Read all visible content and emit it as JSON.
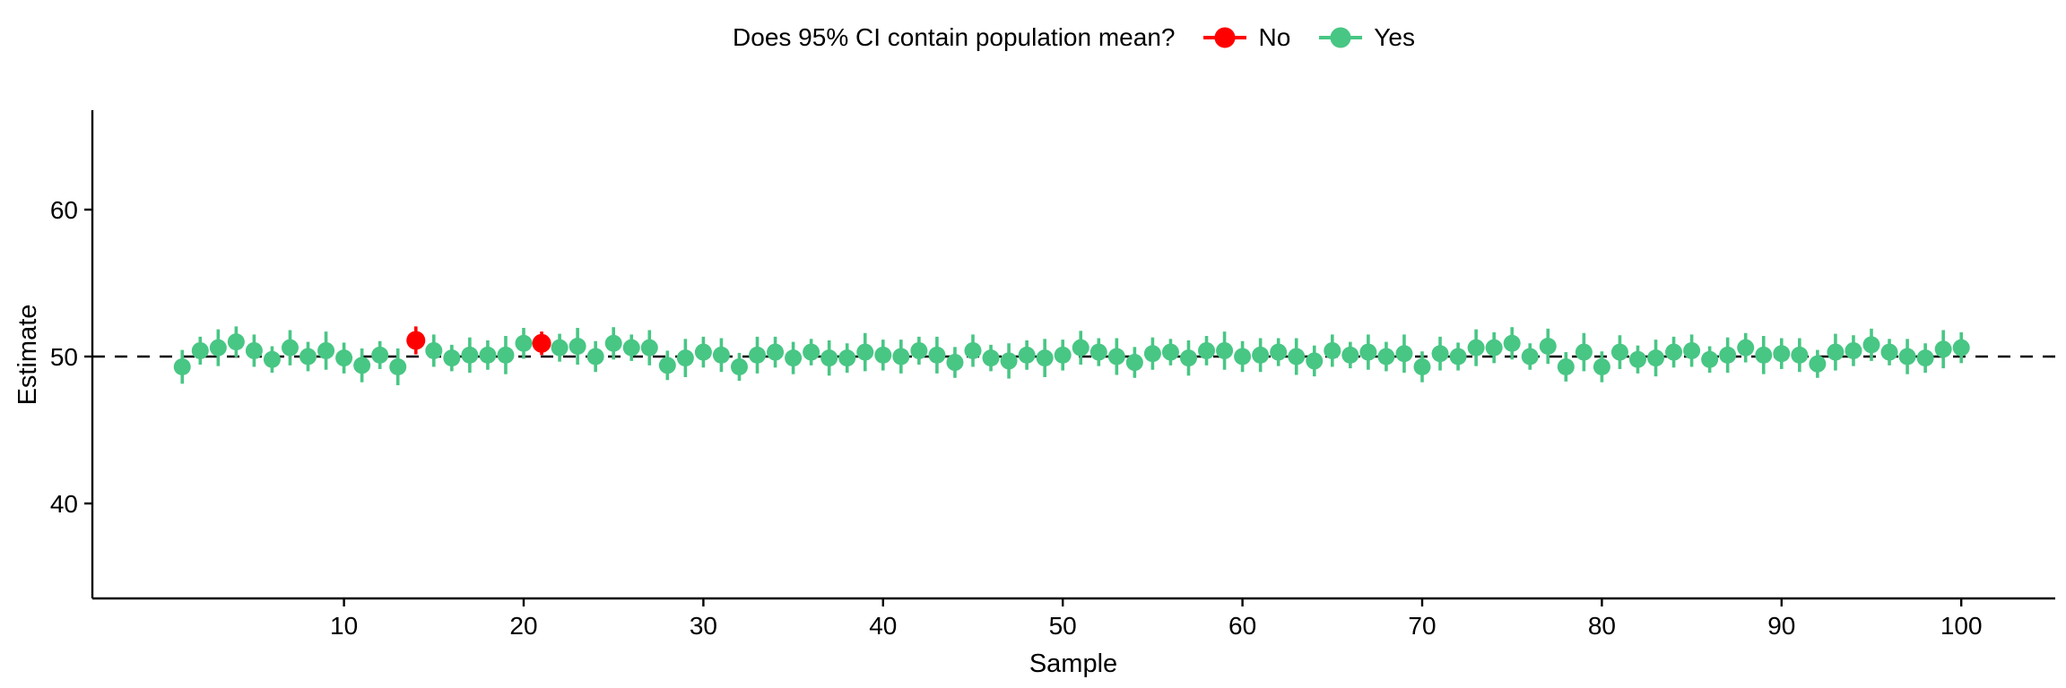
{
  "legend": {
    "title": "Does 95% CI contain population mean?",
    "items": [
      {
        "label": "No",
        "color": "#FF0000"
      },
      {
        "label": "Yes",
        "color": "#48C684"
      }
    ]
  },
  "axes": {
    "x": {
      "label": "Sample",
      "ticks": [
        10,
        20,
        30,
        40,
        50,
        60,
        70,
        80,
        90,
        100
      ]
    },
    "y": {
      "label": "Estimate",
      "ticks": [
        40,
        50,
        60
      ]
    }
  },
  "chart_data": {
    "type": "pointrange",
    "legend_title": "Does 95% CI contain population mean?",
    "xlabel": "Sample",
    "ylabel": "Estimate",
    "x_ticks": [
      10,
      20,
      30,
      40,
      50,
      60,
      70,
      80,
      90,
      100
    ],
    "y_ticks": [
      40,
      50,
      60
    ],
    "xlim": [
      -3,
      105
    ],
    "ylim": [
      33.5,
      66.8
    ],
    "reference_line_y": 50,
    "grid": "off",
    "legend_position": "top",
    "columns": [
      "sample",
      "estimate",
      "ci_lower",
      "ci_upper",
      "contains_mean"
    ],
    "rows": [
      [
        1,
        49.3,
        48.15,
        50.45,
        "Yes"
      ],
      [
        2,
        50.4,
        49.45,
        51.35,
        "Yes"
      ],
      [
        3,
        50.6,
        49.35,
        51.85,
        "Yes"
      ],
      [
        4,
        51.0,
        49.95,
        52.05,
        "Yes"
      ],
      [
        5,
        50.4,
        49.3,
        51.5,
        "Yes"
      ],
      [
        6,
        49.8,
        48.9,
        50.7,
        "Yes"
      ],
      [
        7,
        50.6,
        49.4,
        51.8,
        "Yes"
      ],
      [
        8,
        50.0,
        49.0,
        51.0,
        "Yes"
      ],
      [
        9,
        50.4,
        49.1,
        51.7,
        "Yes"
      ],
      [
        10,
        49.9,
        48.85,
        50.95,
        "Yes"
      ],
      [
        11,
        49.4,
        48.25,
        50.55,
        "Yes"
      ],
      [
        12,
        50.1,
        49.15,
        51.05,
        "Yes"
      ],
      [
        13,
        49.3,
        48.05,
        50.55,
        "Yes"
      ],
      [
        14,
        51.1,
        50.15,
        52.05,
        "No"
      ],
      [
        15,
        50.4,
        49.3,
        51.5,
        "Yes"
      ],
      [
        16,
        49.9,
        49.0,
        50.8,
        "Yes"
      ],
      [
        17,
        50.1,
        48.9,
        51.3,
        "Yes"
      ],
      [
        18,
        50.1,
        49.1,
        51.1,
        "Yes"
      ],
      [
        19,
        50.1,
        48.8,
        51.4,
        "Yes"
      ],
      [
        20,
        50.9,
        49.85,
        51.95,
        "Yes"
      ],
      [
        21,
        50.9,
        50.1,
        51.7,
        "No"
      ],
      [
        22,
        50.6,
        49.65,
        51.55,
        "Yes"
      ],
      [
        23,
        50.7,
        49.45,
        51.95,
        "Yes"
      ],
      [
        24,
        50.0,
        48.95,
        51.05,
        "Yes"
      ],
      [
        25,
        50.9,
        49.8,
        52.0,
        "Yes"
      ],
      [
        26,
        50.6,
        49.7,
        51.5,
        "Yes"
      ],
      [
        27,
        50.6,
        49.4,
        51.8,
        "Yes"
      ],
      [
        28,
        49.4,
        48.4,
        50.4,
        "Yes"
      ],
      [
        29,
        49.9,
        48.6,
        51.2,
        "Yes"
      ],
      [
        30,
        50.3,
        49.25,
        51.35,
        "Yes"
      ],
      [
        31,
        50.1,
        48.95,
        51.25,
        "Yes"
      ],
      [
        32,
        49.3,
        48.35,
        50.25,
        "Yes"
      ],
      [
        33,
        50.1,
        48.85,
        51.35,
        "Yes"
      ],
      [
        34,
        50.3,
        49.25,
        51.35,
        "Yes"
      ],
      [
        35,
        49.9,
        48.8,
        51.0,
        "Yes"
      ],
      [
        36,
        50.3,
        49.4,
        51.2,
        "Yes"
      ],
      [
        37,
        49.9,
        48.7,
        51.1,
        "Yes"
      ],
      [
        38,
        49.9,
        48.9,
        50.9,
        "Yes"
      ],
      [
        39,
        50.3,
        49.0,
        51.6,
        "Yes"
      ],
      [
        40,
        50.1,
        49.05,
        51.15,
        "Yes"
      ],
      [
        41,
        50.0,
        48.85,
        51.15,
        "Yes"
      ],
      [
        42,
        50.4,
        49.45,
        51.35,
        "Yes"
      ],
      [
        43,
        50.1,
        48.85,
        51.35,
        "Yes"
      ],
      [
        44,
        49.6,
        48.55,
        50.65,
        "Yes"
      ],
      [
        45,
        50.4,
        49.3,
        51.5,
        "Yes"
      ],
      [
        46,
        49.9,
        49.0,
        50.8,
        "Yes"
      ],
      [
        47,
        49.7,
        48.5,
        50.9,
        "Yes"
      ],
      [
        48,
        50.1,
        49.1,
        51.1,
        "Yes"
      ],
      [
        49,
        49.9,
        48.6,
        51.2,
        "Yes"
      ],
      [
        50,
        50.1,
        49.05,
        51.15,
        "Yes"
      ],
      [
        51,
        50.6,
        49.45,
        51.75,
        "Yes"
      ],
      [
        52,
        50.3,
        49.35,
        51.25,
        "Yes"
      ],
      [
        53,
        50.0,
        48.75,
        51.25,
        "Yes"
      ],
      [
        54,
        49.6,
        48.55,
        50.65,
        "Yes"
      ],
      [
        55,
        50.2,
        49.1,
        51.3,
        "Yes"
      ],
      [
        56,
        50.3,
        49.4,
        51.2,
        "Yes"
      ],
      [
        57,
        49.9,
        48.7,
        51.1,
        "Yes"
      ],
      [
        58,
        50.4,
        49.4,
        51.4,
        "Yes"
      ],
      [
        59,
        50.4,
        49.1,
        51.7,
        "Yes"
      ],
      [
        60,
        50.0,
        48.95,
        51.05,
        "Yes"
      ],
      [
        61,
        50.1,
        48.95,
        51.25,
        "Yes"
      ],
      [
        62,
        50.3,
        49.35,
        51.25,
        "Yes"
      ],
      [
        63,
        50.0,
        48.75,
        51.25,
        "Yes"
      ],
      [
        64,
        49.7,
        48.65,
        50.75,
        "Yes"
      ],
      [
        65,
        50.4,
        49.3,
        51.5,
        "Yes"
      ],
      [
        66,
        50.1,
        49.2,
        51.0,
        "Yes"
      ],
      [
        67,
        50.3,
        49.1,
        51.5,
        "Yes"
      ],
      [
        68,
        50.0,
        49.0,
        51.0,
        "Yes"
      ],
      [
        69,
        50.2,
        48.9,
        51.5,
        "Yes"
      ],
      [
        70,
        49.3,
        48.25,
        50.35,
        "Yes"
      ],
      [
        71,
        50.2,
        49.05,
        51.35,
        "Yes"
      ],
      [
        72,
        50.0,
        49.05,
        50.95,
        "Yes"
      ],
      [
        73,
        50.6,
        49.35,
        51.85,
        "Yes"
      ],
      [
        74,
        50.6,
        49.55,
        51.65,
        "Yes"
      ],
      [
        75,
        50.9,
        49.8,
        52.0,
        "Yes"
      ],
      [
        76,
        50.0,
        49.1,
        50.9,
        "Yes"
      ],
      [
        77,
        50.7,
        49.5,
        51.9,
        "Yes"
      ],
      [
        78,
        49.3,
        48.3,
        50.3,
        "Yes"
      ],
      [
        79,
        50.3,
        49.0,
        51.6,
        "Yes"
      ],
      [
        80,
        49.3,
        48.25,
        50.35,
        "Yes"
      ],
      [
        81,
        50.3,
        49.15,
        51.45,
        "Yes"
      ],
      [
        82,
        49.8,
        48.85,
        50.75,
        "Yes"
      ],
      [
        83,
        49.9,
        48.65,
        51.15,
        "Yes"
      ],
      [
        84,
        50.3,
        49.25,
        51.35,
        "Yes"
      ],
      [
        85,
        50.4,
        49.3,
        51.5,
        "Yes"
      ],
      [
        86,
        49.8,
        48.9,
        50.7,
        "Yes"
      ],
      [
        87,
        50.1,
        48.9,
        51.3,
        "Yes"
      ],
      [
        88,
        50.6,
        49.6,
        51.6,
        "Yes"
      ],
      [
        89,
        50.1,
        48.8,
        51.4,
        "Yes"
      ],
      [
        90,
        50.2,
        49.15,
        51.25,
        "Yes"
      ],
      [
        91,
        50.1,
        48.95,
        51.25,
        "Yes"
      ],
      [
        92,
        49.5,
        48.55,
        50.45,
        "Yes"
      ],
      [
        93,
        50.3,
        49.05,
        51.55,
        "Yes"
      ],
      [
        94,
        50.4,
        49.35,
        51.45,
        "Yes"
      ],
      [
        95,
        50.8,
        49.7,
        51.9,
        "Yes"
      ],
      [
        96,
        50.3,
        49.4,
        51.2,
        "Yes"
      ],
      [
        97,
        50.0,
        48.8,
        51.2,
        "Yes"
      ],
      [
        98,
        49.9,
        48.9,
        50.9,
        "Yes"
      ],
      [
        99,
        50.5,
        49.2,
        51.8,
        "Yes"
      ],
      [
        100,
        50.6,
        49.55,
        51.65,
        "Yes"
      ]
    ]
  }
}
